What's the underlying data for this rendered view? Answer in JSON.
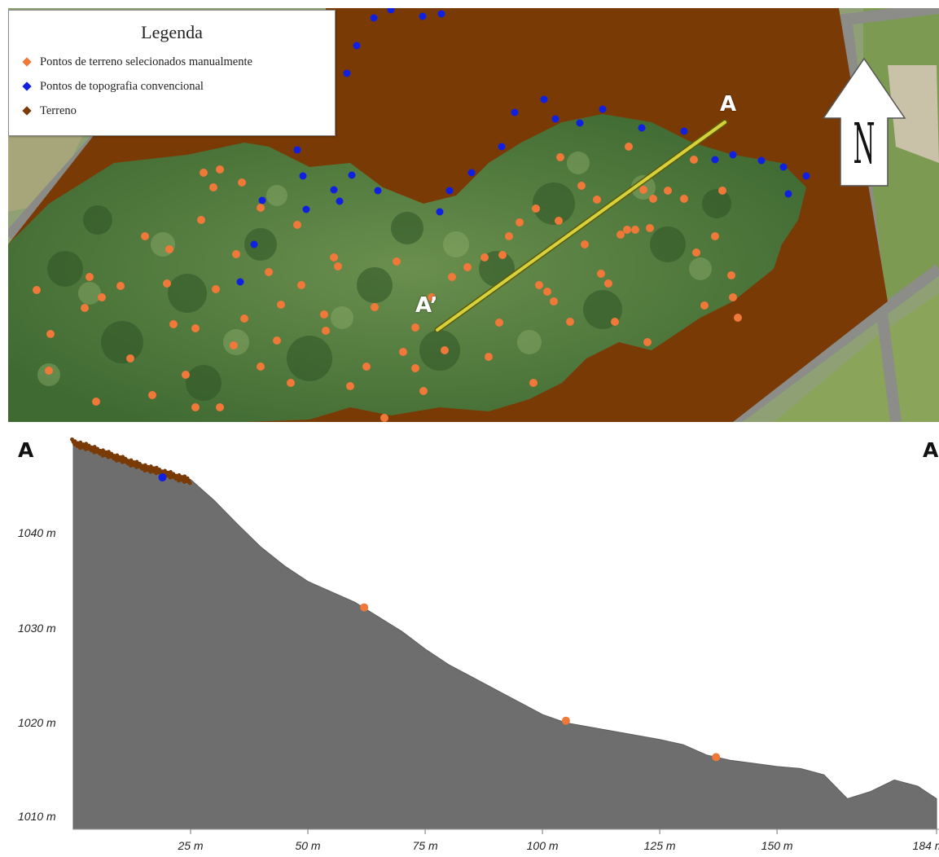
{
  "legend": {
    "title": "Legenda",
    "items": [
      {
        "label": "Pontos de terreno selecionados manualmente",
        "color": "#f07838"
      },
      {
        "label": "Pontos de topografia convencional",
        "color": "#1020e0"
      },
      {
        "label": "Terreno",
        "color": "#7a3a05"
      }
    ]
  },
  "map": {
    "section_start_label": "A",
    "section_end_label": "A’",
    "north_label": "N",
    "colors": {
      "terrain": "#7a3a05",
      "canopy": "#4f7a3c",
      "section_line": "#d7d23a"
    }
  },
  "profile": {
    "left_label": "A",
    "right_label": "A",
    "y_ticks": [
      "1040 m",
      "1030 m",
      "1020 m",
      "1010 m"
    ],
    "x_ticks": [
      "25 m",
      "50 m",
      "75 m",
      "100 m",
      "125 m",
      "150 m",
      "184 m"
    ],
    "colors": {
      "ground": "#6e6e6e",
      "surface_points": "#7a3a05",
      "orange_point": "#f07838",
      "blue_point": "#1020e0"
    }
  },
  "chart_data": {
    "type": "area",
    "x": [
      0,
      5,
      10,
      15,
      20,
      25,
      30,
      35,
      40,
      45,
      50,
      55,
      60,
      65,
      70,
      75,
      80,
      85,
      90,
      95,
      100,
      105,
      110,
      115,
      120,
      125,
      130,
      135,
      140,
      145,
      150,
      155,
      160,
      165,
      170,
      175,
      180,
      184
    ],
    "y": [
      1046.5,
      1045.8,
      1045.0,
      1044.2,
      1043.5,
      1042.8,
      1040.8,
      1038.5,
      1036.3,
      1034.5,
      1033.0,
      1032.0,
      1031.0,
      1029.6,
      1028.2,
      1026.5,
      1025.0,
      1023.8,
      1022.6,
      1021.4,
      1020.2,
      1019.4,
      1019.0,
      1018.6,
      1018.2,
      1017.8,
      1017.3,
      1016.3,
      1015.8,
      1015.5,
      1015.2,
      1015.0,
      1014.4,
      1012.1,
      1012.8,
      1013.9,
      1013.3,
      1012.1
    ],
    "points": [
      {
        "series": "Pontos de topografia convencional",
        "x": 19,
        "y": 1043.0
      },
      {
        "series": "Pontos de terreno selecionados manualmente",
        "x": 62,
        "y": 1030.5
      },
      {
        "series": "Pontos de terreno selecionados manualmente",
        "x": 105,
        "y": 1019.6
      },
      {
        "series": "Pontos de terreno selecionados manualmente",
        "x": 137,
        "y": 1016.1
      }
    ],
    "xlim": [
      0,
      184
    ],
    "ylim": [
      1009,
      1047
    ],
    "grid": false
  }
}
